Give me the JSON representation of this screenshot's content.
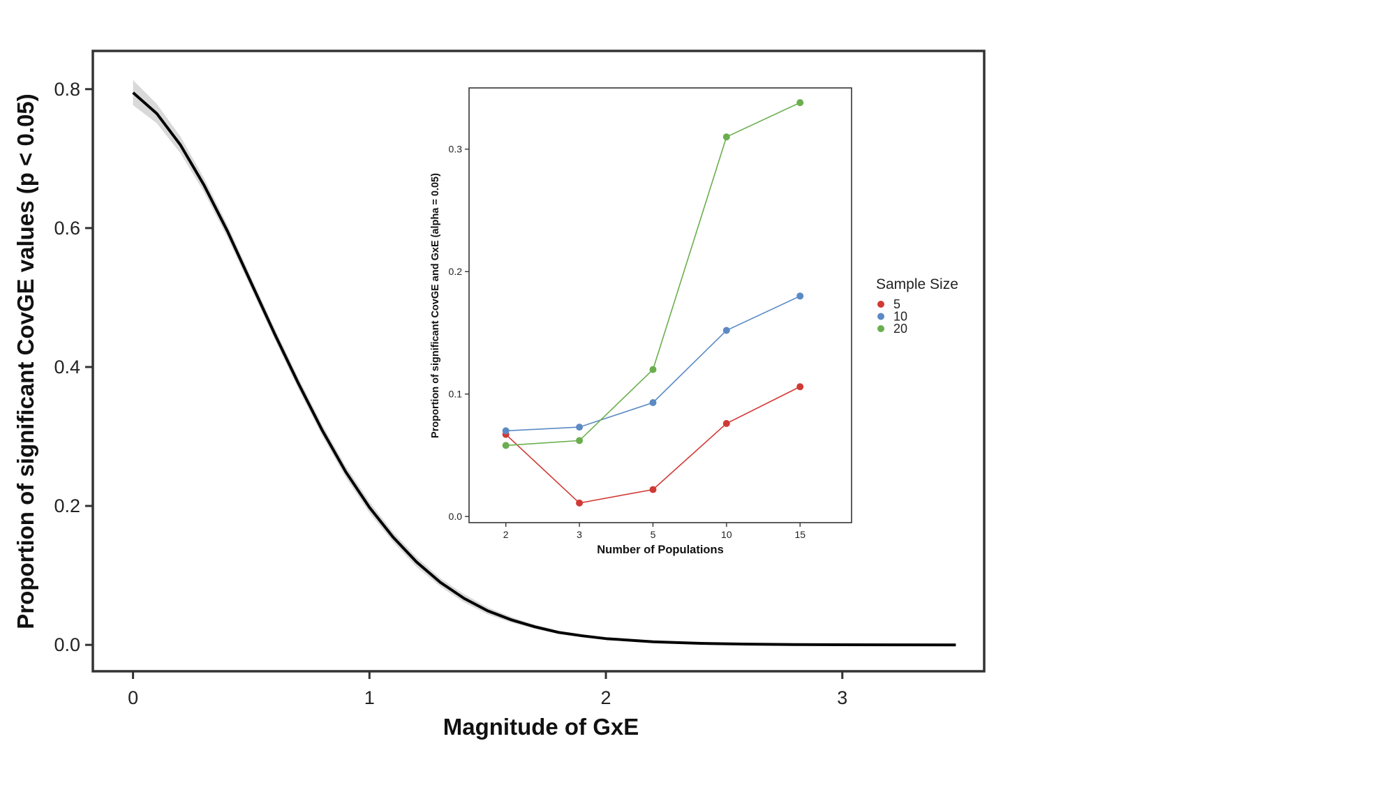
{
  "chart_data": [
    {
      "type": "line",
      "xlabel": "Magnitude of GxE",
      "ylabel": "Proportion of significant CovGE values (p < 0.05)",
      "xlim": [
        -0.17,
        3.6
      ],
      "ylim": [
        -0.038,
        0.855
      ],
      "x_ticks": [
        0,
        1,
        2,
        3
      ],
      "x_tick_labels": [
        "0",
        "1",
        "2",
        "3"
      ],
      "y_ticks": [
        0.0,
        0.2,
        0.4,
        0.6,
        0.8
      ],
      "y_tick_labels": [
        "0.0",
        "0.2",
        "0.4",
        "0.6",
        "0.8"
      ],
      "grid": false,
      "series": [
        {
          "x": [
            0,
            0.1,
            0.2,
            0.3,
            0.4,
            0.5,
            0.6,
            0.7,
            0.8,
            0.9,
            1.0,
            1.1,
            1.2,
            1.3,
            1.4,
            1.5,
            1.6,
            1.7,
            1.8,
            1.9,
            2.0,
            2.2,
            2.4,
            2.6,
            2.8,
            3.0,
            3.2,
            3.48
          ],
          "y": [
            0.795,
            0.765,
            0.72,
            0.662,
            0.595,
            0.521,
            0.447,
            0.376,
            0.309,
            0.249,
            0.198,
            0.155,
            0.119,
            0.09,
            0.067,
            0.049,
            0.036,
            0.026,
            0.018,
            0.013,
            0.009,
            0.0045,
            0.0022,
            0.0011,
            0.0005,
            0.0002,
            0.0001,
            0.0
          ],
          "ci_halfwidth": [
            0.018,
            0.014,
            0.012,
            0.01,
            0.009,
            0.008,
            0.008,
            0.008,
            0.008,
            0.008,
            0.008,
            0.007,
            0.007,
            0.006,
            0.006,
            0.005,
            0.004,
            0.003,
            0.0025,
            0.002,
            0.0015,
            0.001,
            0.0008,
            0.0006,
            0.0005,
            0.0004,
            0.0003,
            0.0003
          ],
          "color": "#000000",
          "band_color": "#d9d9d9"
        }
      ]
    },
    {
      "type": "line",
      "xlabel": "Number of Populations",
      "ylabel": "Proportion of significant CovGE and GxE (alpha = 0.05)",
      "categories": [
        "2",
        "3",
        "5",
        "10",
        "15"
      ],
      "ylim": [
        -0.005,
        0.35
      ],
      "y_ticks": [
        0.0,
        0.1,
        0.2,
        0.3
      ],
      "y_tick_labels": [
        "0.0",
        "0.1",
        "0.2",
        "0.3"
      ],
      "grid": false,
      "legend": {
        "title": "Sample Size",
        "position": "right"
      },
      "series": [
        {
          "name": "5",
          "color": "#d03a35",
          "values": [
            0.067,
            0.011,
            0.022,
            0.076,
            0.106
          ]
        },
        {
          "name": "10",
          "color": "#5b8ac4",
          "values": [
            0.07,
            0.073,
            0.093,
            0.152,
            0.18
          ]
        },
        {
          "name": "20",
          "color": "#6aae4e",
          "values": [
            0.058,
            0.062,
            0.12,
            0.31,
            0.338
          ]
        }
      ]
    }
  ]
}
